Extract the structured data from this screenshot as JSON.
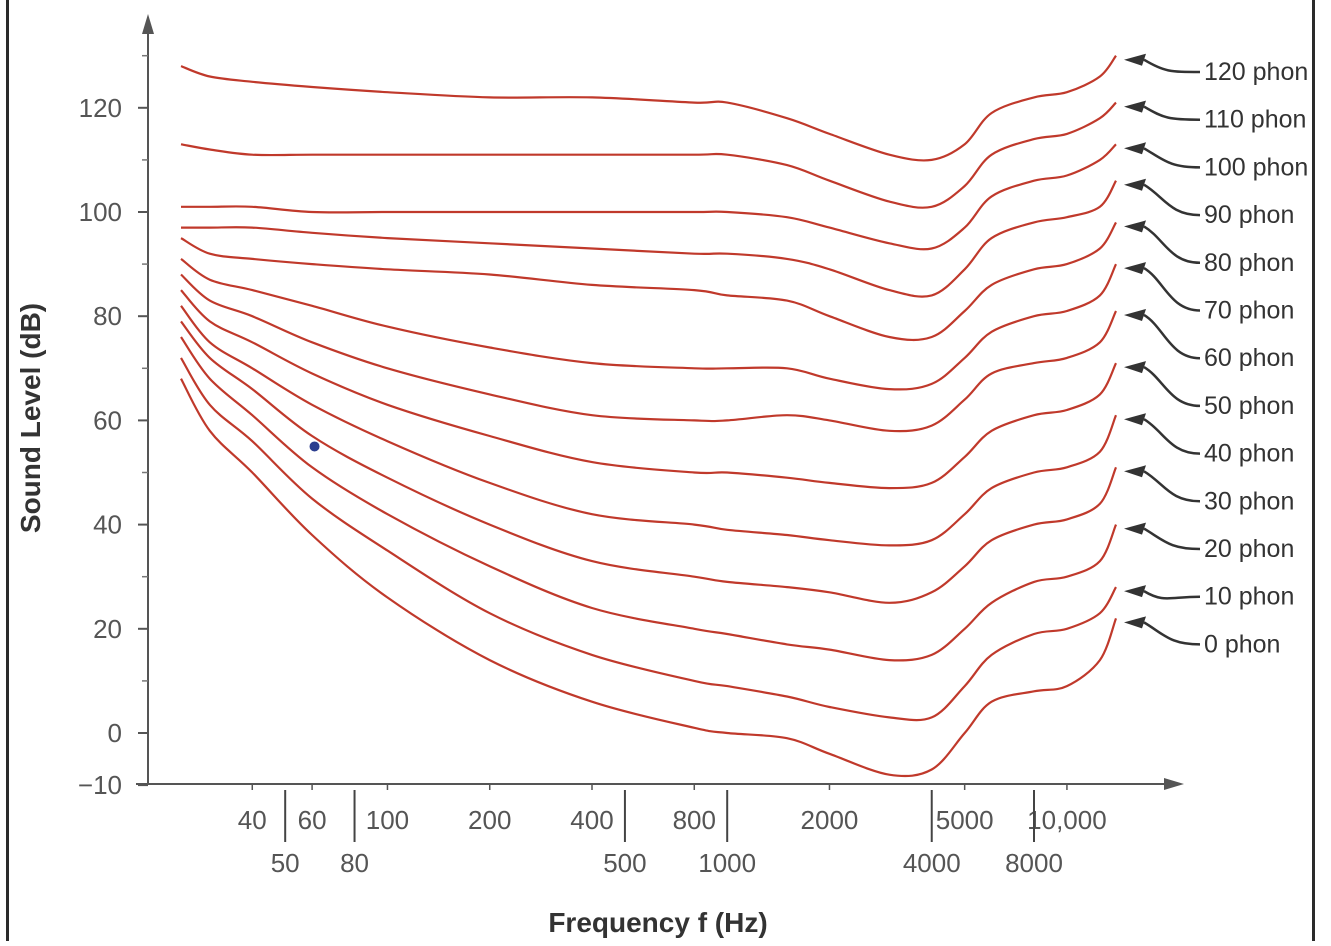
{
  "chart_data": {
    "type": "line",
    "xlabel": "Frequency f (Hz)",
    "ylabel": "Sound Level (dB)",
    "x_scale": "log",
    "xlim": [
      20,
      20000
    ],
    "ylim": [
      -10,
      130
    ],
    "y_ticks": [
      -10,
      0,
      20,
      40,
      60,
      80,
      100,
      120
    ],
    "x_ticks_row1": [
      {
        "value": 40,
        "label": "40"
      },
      {
        "value": 60,
        "label": "60"
      },
      {
        "value": 100,
        "label": "100"
      },
      {
        "value": 200,
        "label": "200"
      },
      {
        "value": 400,
        "label": "400"
      },
      {
        "value": 800,
        "label": "800"
      },
      {
        "value": 2000,
        "label": "2000"
      },
      {
        "value": 5000,
        "label": "5000"
      },
      {
        "value": 10000,
        "label": "10,000"
      }
    ],
    "x_ticks_row2": [
      {
        "value": 50,
        "label": "50"
      },
      {
        "value": 80,
        "label": "80"
      },
      {
        "value": 500,
        "label": "500"
      },
      {
        "value": 1000,
        "label": "1000"
      },
      {
        "value": 4000,
        "label": "4000"
      },
      {
        "value": 8000,
        "label": "8000"
      }
    ],
    "grid": false,
    "line_color": "#c0392b",
    "marker": {
      "x": 61,
      "y": 55,
      "color": "#2c3e8f"
    },
    "x": [
      20,
      30,
      40,
      60,
      100,
      200,
      400,
      800,
      1000,
      1500,
      2000,
      3000,
      4000,
      5000,
      6000,
      8000,
      10000,
      12500,
      15000
    ],
    "series": [
      {
        "name": "0 phon",
        "label": "0 phon",
        "values": [
          68,
          58,
          50,
          38,
          26,
          14,
          6,
          1,
          0,
          -1,
          -4,
          -8,
          -7,
          0,
          6,
          8,
          9,
          14,
          22
        ]
      },
      {
        "name": "10 phon",
        "label": "10 phon",
        "values": [
          72,
          63,
          56,
          45,
          35,
          23,
          15,
          10,
          9,
          7,
          5,
          3,
          3,
          9,
          15,
          19,
          20,
          23,
          28
        ]
      },
      {
        "name": "20 phon",
        "label": "20 phon",
        "values": [
          76,
          68,
          61,
          51,
          42,
          32,
          24,
          20,
          19,
          17,
          16,
          14,
          15,
          20,
          25,
          29,
          30,
          33,
          40
        ]
      },
      {
        "name": "30 phon",
        "label": "30 phon",
        "values": [
          79,
          72,
          66,
          57,
          49,
          40,
          33,
          30,
          29,
          28,
          27,
          25,
          27,
          32,
          37,
          40,
          41,
          44,
          51
        ]
      },
      {
        "name": "40 phon",
        "label": "40 phon",
        "values": [
          82,
          75,
          70,
          63,
          56,
          48,
          42,
          40,
          39,
          38,
          37,
          36,
          37,
          42,
          47,
          50,
          51,
          54,
          61
        ]
      },
      {
        "name": "50 phon",
        "label": "50 phon",
        "values": [
          85,
          79,
          75,
          69,
          63,
          57,
          52,
          50,
          50,
          49,
          48,
          47,
          48,
          53,
          58,
          61,
          62,
          65,
          71
        ]
      },
      {
        "name": "60 phon",
        "label": "60 phon",
        "values": [
          88,
          83,
          80,
          75,
          70,
          65,
          61,
          60,
          60,
          61,
          60,
          58,
          59,
          64,
          69,
          71,
          72,
          75,
          81
        ]
      },
      {
        "name": "70 phon",
        "label": "70 phon",
        "values": [
          91,
          87,
          85,
          82,
          78,
          74,
          71,
          70,
          70,
          70,
          68,
          66,
          67,
          72,
          77,
          80,
          81,
          84,
          90
        ]
      },
      {
        "name": "80 phon",
        "label": "80 phon",
        "values": [
          95,
          92,
          91,
          90,
          89,
          88,
          86,
          85,
          84,
          83,
          80,
          76,
          76,
          81,
          86,
          89,
          90,
          93,
          98
        ]
      },
      {
        "name": "90 phon",
        "label": "90 phon",
        "values": [
          97,
          97,
          97,
          96,
          95,
          94,
          93,
          92,
          92,
          91,
          89,
          85,
          84,
          89,
          95,
          98,
          99,
          101,
          106
        ]
      },
      {
        "name": "100 phon",
        "label": "100 phon",
        "values": [
          101,
          101,
          101,
          100,
          100,
          100,
          100,
          100,
          100,
          99,
          97,
          94,
          93,
          97,
          103,
          106,
          107,
          110,
          113
        ]
      },
      {
        "name": "110 phon",
        "label": "110 phon",
        "values": [
          113,
          112,
          111,
          111,
          111,
          111,
          111,
          111,
          111,
          109,
          106,
          102,
          101,
          105,
          111,
          114,
          115,
          118,
          121
        ]
      },
      {
        "name": "120 phon",
        "label": "120 phon",
        "values": [
          128,
          126,
          125,
          124,
          123,
          122,
          122,
          121,
          121,
          118,
          115,
          111,
          110,
          113,
          119,
          122,
          123,
          126,
          130
        ]
      }
    ]
  }
}
